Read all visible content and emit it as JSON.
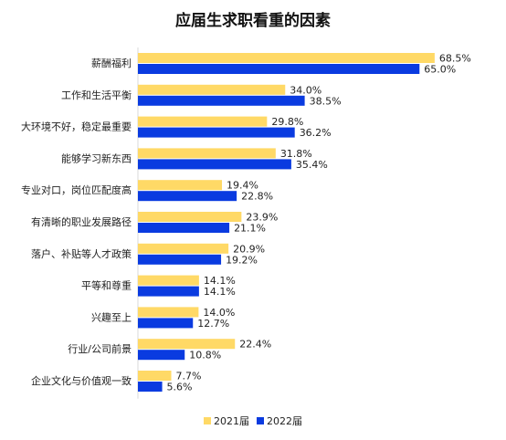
{
  "chart_data": {
    "type": "bar",
    "orientation": "horizontal",
    "title": "应届生求职看重的因素",
    "categories": [
      "薪酬福利",
      "工作和生活平衡",
      "大环境不好，稳定最重要",
      "能够学习新东西",
      "专业对口，岗位匹配度高",
      "有清晰的职业发展路径",
      "落户、补贴等人才政策",
      "平等和尊重",
      "兴趣至上",
      "行业/公司前景",
      "企业文化与价值观一致"
    ],
    "series": [
      {
        "name": "2021届",
        "color": "#FFD966",
        "values": [
          68.5,
          34.0,
          29.8,
          31.8,
          19.4,
          23.9,
          20.9,
          14.1,
          14.0,
          22.4,
          7.7
        ],
        "labels": [
          "68.5%",
          "34.0%",
          "29.8%",
          "31.8%",
          "19.4%",
          "23.9%",
          "20.9%",
          "14.1%",
          "14.0%",
          "22.4%",
          "7.7%"
        ]
      },
      {
        "name": "2022届",
        "color": "#0A3BE0",
        "values": [
          65.0,
          38.5,
          36.2,
          35.4,
          22.8,
          21.1,
          19.2,
          14.1,
          12.7,
          10.8,
          5.6
        ],
        "labels": [
          "65.0%",
          "38.5%",
          "36.2%",
          "35.4%",
          "22.8%",
          "21.1%",
          "19.2%",
          "14.1%",
          "12.7%",
          "10.8%",
          "5.6%"
        ]
      }
    ],
    "xlim": [
      0,
      70
    ],
    "unit": "%",
    "grid": false,
    "legend_position": "bottom"
  }
}
